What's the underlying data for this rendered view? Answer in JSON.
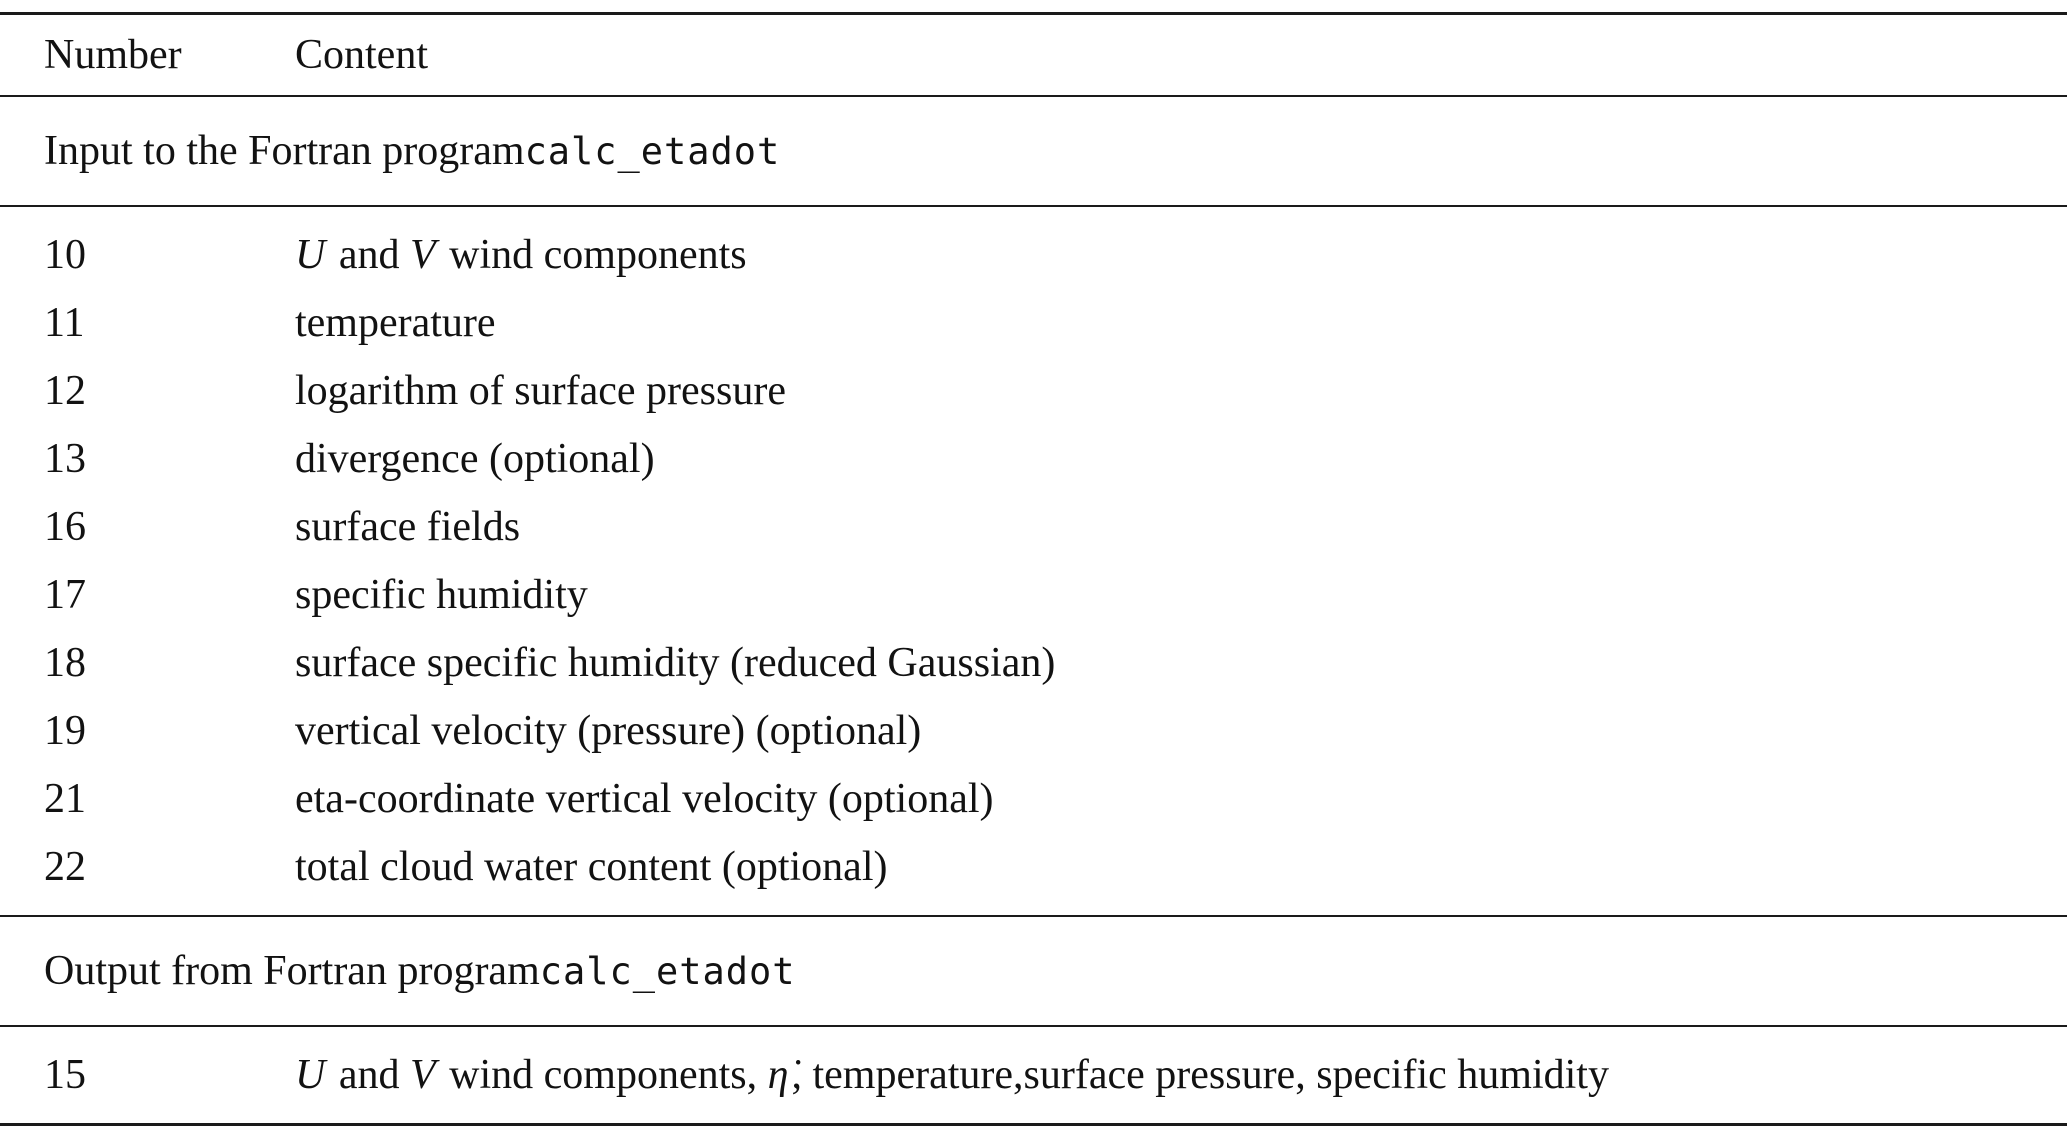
{
  "table": {
    "header": {
      "number": "Number",
      "content": "Content"
    },
    "sections": [
      {
        "title": [
          {
            "text": "Input to the Fortran program ",
            "style": "normal"
          },
          {
            "text": "calc_etadot",
            "style": "code"
          }
        ],
        "rows": [
          {
            "number": "10",
            "content": [
              {
                "text": "U",
                "style": "italic"
              },
              {
                "text": " and ",
                "style": "normal"
              },
              {
                "text": "V",
                "style": "italic"
              },
              {
                "text": " wind components",
                "style": "normal"
              }
            ]
          },
          {
            "number": "11",
            "content": [
              {
                "text": "temperature",
                "style": "normal"
              }
            ]
          },
          {
            "number": "12",
            "content": [
              {
                "text": "logarithm of surface pressure",
                "style": "normal"
              }
            ]
          },
          {
            "number": "13",
            "content": [
              {
                "text": "divergence (optional)",
                "style": "normal"
              }
            ]
          },
          {
            "number": "16",
            "content": [
              {
                "text": "surface fields",
                "style": "normal"
              }
            ]
          },
          {
            "number": "17",
            "content": [
              {
                "text": "specific humidity",
                "style": "normal"
              }
            ]
          },
          {
            "number": "18",
            "content": [
              {
                "text": "surface specific humidity (reduced Gaussian)",
                "style": "normal"
              }
            ]
          },
          {
            "number": "19",
            "content": [
              {
                "text": "vertical velocity (pressure) (optional)",
                "style": "normal"
              }
            ]
          },
          {
            "number": "21",
            "content": [
              {
                "text": "eta-coordinate vertical velocity (optional)",
                "style": "normal"
              }
            ]
          },
          {
            "number": "22",
            "content": [
              {
                "text": "total cloud water content (optional)",
                "style": "normal"
              }
            ]
          }
        ]
      },
      {
        "title": [
          {
            "text": "Output from Fortran program ",
            "style": "normal"
          },
          {
            "text": "calc_etadot",
            "style": "code"
          }
        ],
        "rows": [
          {
            "number": "15",
            "content": [
              {
                "text": "U",
                "style": "italic"
              },
              {
                "text": " and ",
                "style": "normal"
              },
              {
                "text": "V",
                "style": "italic"
              },
              {
                "text": " wind components, ",
                "style": "normal"
              },
              {
                "text": "η̇",
                "style": "italic"
              },
              {
                "text": ", temperature,surface pressure, specific humidity",
                "style": "normal"
              }
            ]
          }
        ]
      }
    ]
  }
}
